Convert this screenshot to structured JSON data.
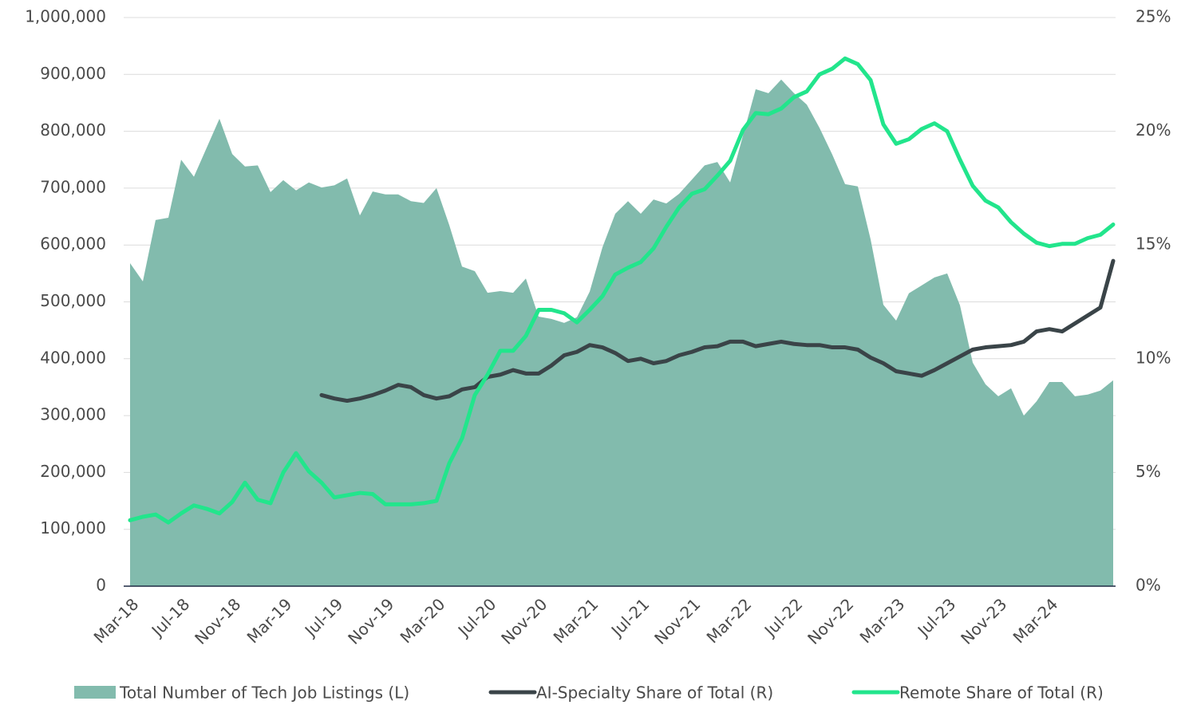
{
  "chart_data": {
    "type": "area",
    "categories": [
      "Mar-18",
      null,
      null,
      null,
      "Jul-18",
      null,
      null,
      null,
      "Nov-18",
      null,
      null,
      null,
      "Mar-19",
      null,
      null,
      null,
      "Jul-19",
      null,
      null,
      null,
      "Nov-19",
      null,
      null,
      null,
      "Mar-20",
      null,
      null,
      null,
      "Jul-20",
      null,
      null,
      null,
      "Nov-20",
      null,
      null,
      null,
      "Mar-21",
      null,
      null,
      null,
      "Jul-21",
      null,
      null,
      null,
      "Nov-21",
      null,
      null,
      null,
      "Mar-22",
      null,
      null,
      null,
      "Jul-22",
      null,
      null,
      null,
      "Nov-22",
      null,
      null,
      null,
      "Mar-23",
      null,
      null,
      null,
      "Jul-23",
      null,
      null,
      null,
      "Nov-23",
      null,
      null,
      null,
      "Mar-24",
      null,
      null,
      null,
      null,
      null
    ],
    "series": [
      {
        "name": "Total Number of Tech Job Listings (L)",
        "type": "area",
        "axis": "y",
        "color": "#82bbad",
        "values": [
          568000,
          536000,
          644000,
          648000,
          750000,
          720000,
          771000,
          822000,
          760000,
          738000,
          740000,
          693000,
          714000,
          696000,
          710000,
          701000,
          705000,
          717000,
          652000,
          694000,
          689000,
          689000,
          677000,
          674000,
          700000,
          635000,
          562000,
          554000,
          516000,
          519000,
          516000,
          541000,
          474000,
          470000,
          463000,
          473000,
          518000,
          596000,
          655000,
          677000,
          655000,
          680000,
          673000,
          690000,
          715000,
          740000,
          746000,
          710000,
          792000,
          874000,
          867000,
          891000,
          867000,
          847000,
          806000,
          759000,
          707000,
          703000,
          610000,
          495000,
          467000,
          515000,
          529000,
          543000,
          550000,
          494000,
          393000,
          355000,
          334000,
          348000,
          300000,
          325000,
          359000,
          359000,
          334000,
          337000,
          344000,
          362000
        ]
      },
      {
        "name": "AI-Specialty Share of Total (R)",
        "type": "line",
        "axis": "y2",
        "color": "#3a4448",
        "values": [
          null,
          null,
          null,
          null,
          null,
          null,
          null,
          null,
          null,
          null,
          null,
          null,
          null,
          null,
          null,
          8.4,
          8.25,
          8.15,
          8.25,
          8.4,
          8.6,
          8.85,
          8.75,
          8.4,
          8.25,
          8.35,
          8.65,
          8.75,
          9.2,
          9.3,
          9.5,
          9.35,
          9.35,
          9.7,
          10.15,
          10.3,
          10.6,
          10.5,
          10.25,
          9.9,
          10.0,
          9.8,
          9.9,
          10.15,
          10.3,
          10.5,
          10.55,
          10.75,
          10.75,
          10.55,
          10.65,
          10.75,
          10.65,
          10.6,
          10.6,
          10.5,
          10.5,
          10.4,
          10.05,
          9.8,
          9.45,
          9.35,
          9.25,
          9.5,
          9.8,
          10.1,
          10.4,
          10.5,
          10.55,
          10.6,
          10.75,
          11.2,
          11.3,
          11.2,
          11.55,
          11.9,
          12.25,
          14.3
        ]
      },
      {
        "name": "Remote Share of Total (R)",
        "type": "line",
        "axis": "y2",
        "color": "#22e58c",
        "values": [
          2.9,
          3.05,
          3.15,
          2.8,
          3.2,
          3.55,
          3.4,
          3.2,
          3.7,
          4.55,
          3.8,
          3.65,
          5.0,
          5.85,
          5.05,
          4.55,
          3.9,
          4.0,
          4.1,
          4.05,
          3.6,
          3.6,
          3.6,
          3.65,
          3.75,
          5.4,
          6.5,
          8.4,
          9.3,
          10.35,
          10.35,
          11.0,
          12.15,
          12.15,
          12.0,
          11.6,
          12.15,
          12.75,
          13.7,
          14.0,
          14.25,
          14.85,
          15.8,
          16.65,
          17.25,
          17.45,
          18.05,
          18.7,
          20.05,
          20.8,
          20.75,
          21.0,
          21.5,
          21.75,
          22.5,
          22.75,
          23.2,
          22.95,
          22.25,
          20.3,
          19.45,
          19.65,
          20.1,
          20.35,
          20.0,
          18.75,
          17.6,
          16.95,
          16.65,
          16.0,
          15.5,
          15.1,
          14.95,
          15.05,
          15.05,
          15.3,
          15.45,
          15.9
        ]
      }
    ],
    "ylim": [
      0,
      1000000
    ],
    "yticks": [
      0,
      {
        "value": 100000,
        "label": "100,000"
      },
      {
        "value": 200000,
        "label": "200,000"
      },
      {
        "value": 300000,
        "label": "300,000"
      },
      {
        "value": 400000,
        "label": "400,000"
      },
      {
        "value": 500000,
        "label": "500,000"
      },
      {
        "value": 600000,
        "label": "600,000"
      },
      {
        "value": 700000,
        "label": "700,000"
      },
      {
        "value": 800000,
        "label": "800,000"
      },
      {
        "value": 900000,
        "label": "900,000"
      },
      {
        "value": 1000000,
        "label": "1,000,000"
      }
    ],
    "y2lim": [
      0,
      25
    ],
    "y2ticks": [
      {
        "value": 0,
        "label": "0%"
      },
      {
        "value": 5,
        "label": "5%"
      },
      {
        "value": 10,
        "label": "10%"
      },
      {
        "value": 15,
        "label": "15%"
      },
      {
        "value": 20,
        "label": "20%"
      },
      {
        "value": 25,
        "label": "25%"
      }
    ],
    "grid": true,
    "legend": "bottom"
  }
}
